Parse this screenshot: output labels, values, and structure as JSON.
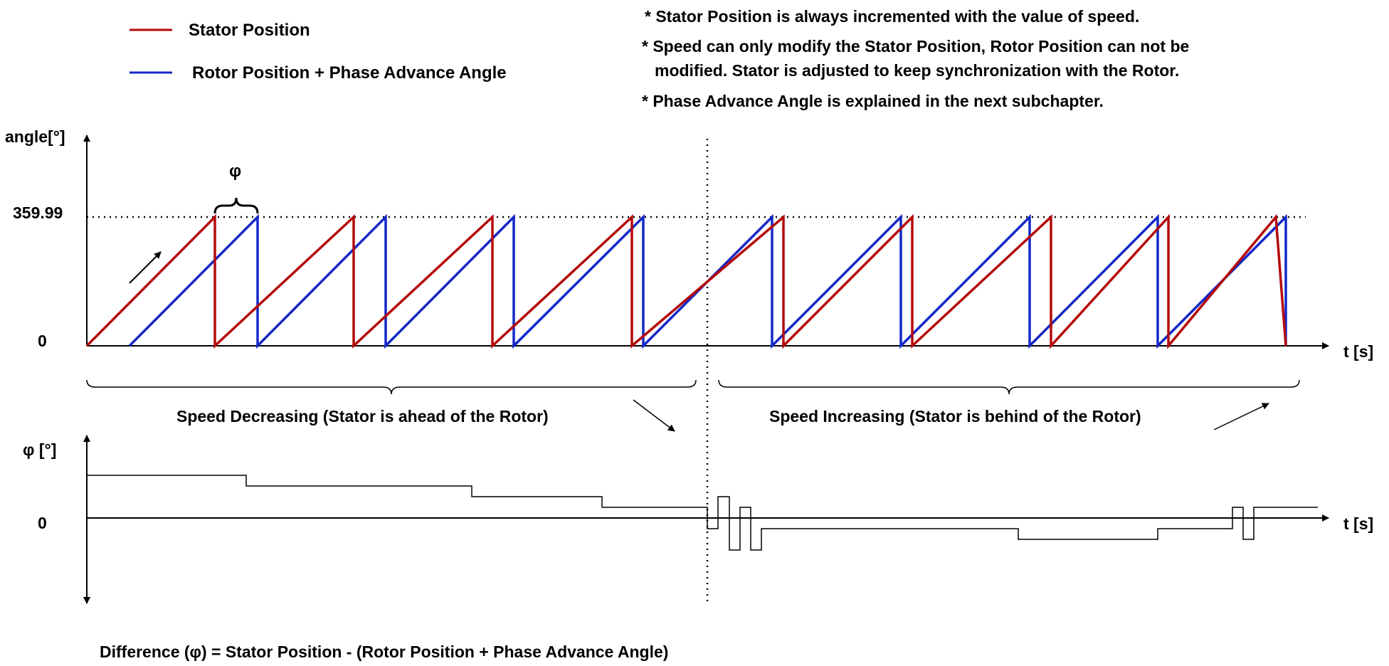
{
  "legend": [
    {
      "label": "Stator Position",
      "color": "#b40a0a"
    },
    {
      "label": "Rotor Position + Phase Advance Angle",
      "color": "#1428c8"
    }
  ],
  "notes": [
    [
      "* Stator Position is always incremented with the value of speed."
    ],
    [
      "* Speed can only modify the Stator Position, Rotor Position can not be",
      "modified. Stator is adjusted to keep synchronization with the Rotor."
    ],
    [
      "* Phase Advance Angle is explained in the next subchapter."
    ]
  ],
  "upper_plot": {
    "y_axis_label": "angle[°]",
    "x_axis_label": "t [s]",
    "y_max_label": "359.99",
    "y_zero_label": "0",
    "phi_label": "φ",
    "region_labels": {
      "left": "Speed Decreasing (Stator is ahead of the Rotor)",
      "right": "Speed Increasing (Stator is behind of the Rotor)"
    }
  },
  "lower_plot": {
    "y_axis_label": "φ [°]",
    "x_axis_label": "t [s]",
    "y_zero_label": "0"
  },
  "formula": "Difference (φ) = Stator Position - (Rotor Position + Phase Advance Angle)",
  "colors": {
    "stator": "#b40a0a",
    "rotor": "#1428c8",
    "axis": "#000000"
  }
}
